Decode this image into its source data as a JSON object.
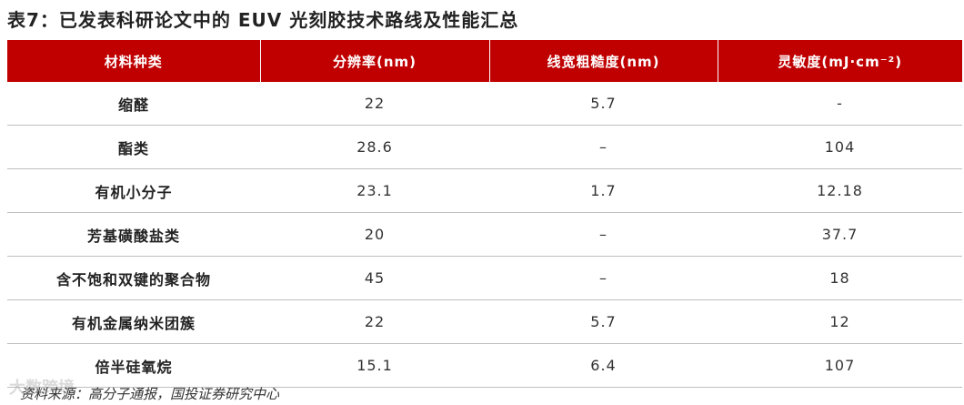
{
  "header": {
    "title": "表7：已发表科研论文中的 EUV 光刻胶技术路线及性能汇总"
  },
  "table": {
    "columns": [
      "材料种类",
      "分辨率(nm)",
      "线宽粗糙度(nm)",
      "灵敏度(mJ·cm⁻²)"
    ],
    "rows": [
      [
        "缩醛",
        "22",
        "5.7",
        "-"
      ],
      [
        "酯类",
        "28.6",
        "–",
        "104"
      ],
      [
        "有机小分子",
        "23.1",
        "1.7",
        "12.18"
      ],
      [
        "芳基磺酸盐类",
        "20",
        "–",
        "37.7"
      ],
      [
        "含不饱和双键的聚合物",
        "45",
        "–",
        "18"
      ],
      [
        "有机金属纳米团簇",
        "22",
        "5.7",
        "12"
      ],
      [
        "倍半硅氧烷",
        "15.1",
        "6.4",
        "107"
      ]
    ]
  },
  "footer": {
    "source": "资料来源：高分子通报，国投证券研究中心",
    "watermark": "大数跨境"
  }
}
